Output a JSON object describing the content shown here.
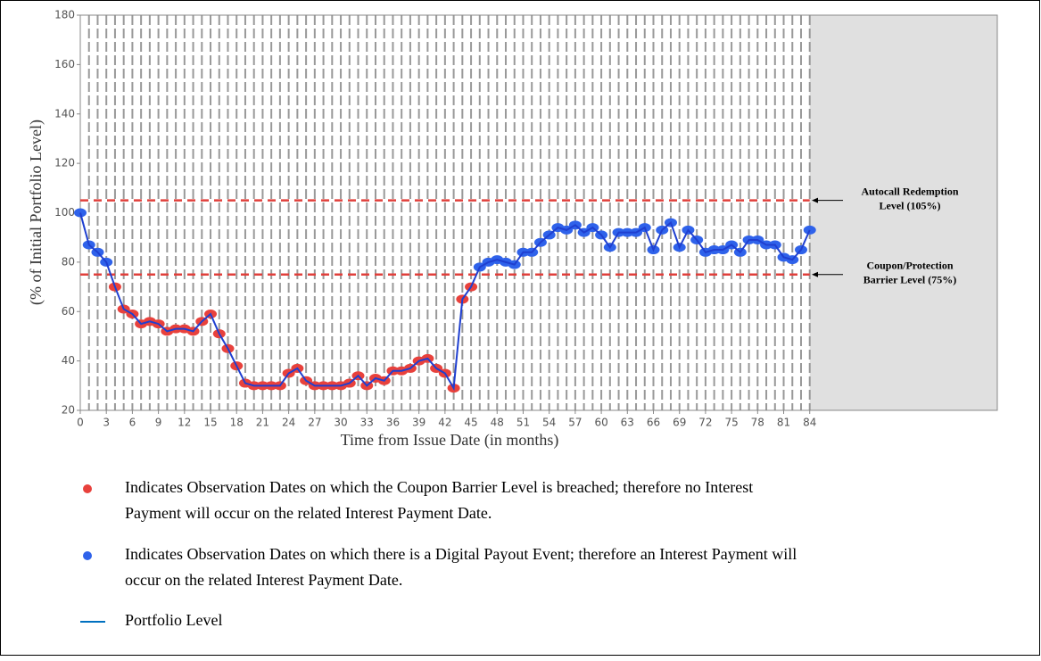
{
  "chart_data": {
    "type": "line",
    "x_label": "Time from Issue Date (in months)",
    "y_label": "(% of Initial Portfolio Level)",
    "x": [
      0,
      1,
      2,
      3,
      4,
      5,
      6,
      7,
      8,
      9,
      10,
      11,
      12,
      13,
      14,
      15,
      16,
      17,
      18,
      19,
      20,
      21,
      22,
      23,
      24,
      25,
      26,
      27,
      28,
      29,
      30,
      31,
      32,
      33,
      34,
      35,
      36,
      37,
      38,
      39,
      40,
      41,
      42,
      43,
      44,
      45,
      46,
      47,
      48,
      49,
      50,
      51,
      52,
      53,
      54,
      55,
      56,
      57,
      58,
      59,
      60,
      61,
      62,
      63,
      64,
      65,
      66,
      67,
      68,
      69,
      70,
      71,
      72,
      73,
      74,
      75,
      76,
      77,
      78,
      79,
      80,
      81,
      82,
      83,
      84
    ],
    "series": [
      {
        "name": "Portfolio Level",
        "color": "#1f3fd0",
        "values": [
          100,
          87,
          84,
          80,
          70,
          61,
          59,
          55,
          56,
          55,
          52,
          53,
          53,
          52,
          56,
          59,
          51,
          45,
          38,
          31,
          30,
          30,
          30,
          30,
          35,
          37,
          32,
          30,
          30,
          30,
          30,
          31,
          34,
          30,
          33,
          32,
          36,
          36,
          37,
          40,
          41,
          37,
          35,
          29,
          65,
          70,
          78,
          80,
          81,
          80,
          79,
          84,
          84,
          88,
          91,
          94,
          93,
          95,
          92,
          94,
          91,
          86,
          92,
          92,
          92,
          94,
          85,
          93,
          96,
          86,
          93,
          89,
          84,
          85,
          85,
          87,
          84,
          89,
          89,
          87,
          87,
          82,
          81,
          85,
          93
        ]
      }
    ],
    "xlim": [
      0,
      105.6
    ],
    "ylim": [
      20,
      180
    ],
    "xticks": [
      0,
      3,
      6,
      9,
      12,
      15,
      18,
      21,
      24,
      27,
      30,
      33,
      36,
      39,
      42,
      45,
      48,
      51,
      54,
      57,
      60,
      63,
      66,
      69,
      72,
      75,
      78,
      81,
      84
    ],
    "yticks": [
      20,
      40,
      60,
      80,
      100,
      120,
      140,
      160,
      180
    ],
    "shaded_from": 84,
    "shade_color": "#e0e0e0",
    "hlines": [
      {
        "value": 105,
        "color": "#e0403c",
        "label": [
          "Autocall Redemption",
          "Level (105%)"
        ]
      },
      {
        "value": 75,
        "color": "#e0403c",
        "label": [
          "Coupon/Protection",
          "Barrier Level (75%)"
        ]
      }
    ],
    "marker_legend": [
      {
        "color": "#e8413c",
        "lines": [
          "Indicates Observation Dates on which the Coupon Barrier Level is breached; therefore no Interest",
          "Payment will occur on the related Interest Payment Date."
        ]
      },
      {
        "color": "#2f62ea",
        "lines": [
          "Indicates Observation Dates on which there is a Digital Payout Event; therefore an Interest Payment will",
          "occur on the related Interest Payment Date."
        ]
      }
    ],
    "line_legend_color": "#0070c0"
  }
}
